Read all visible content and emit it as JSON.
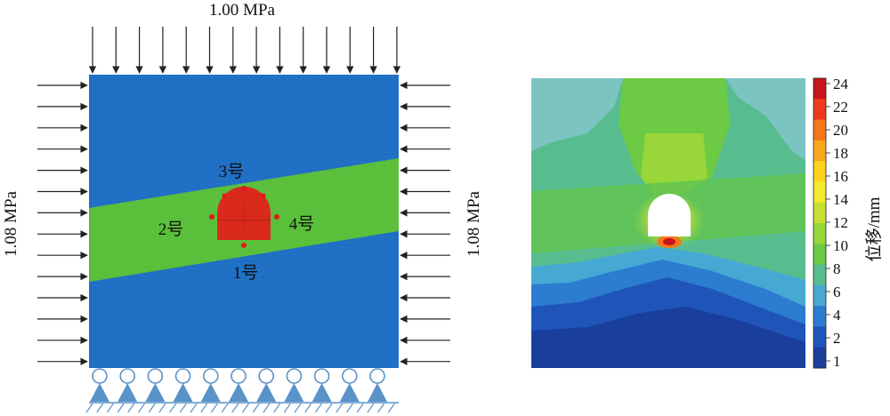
{
  "left_model": {
    "top_load": "1.00 MPa",
    "left_load": "1.08 MPa",
    "right_load": "1.08 MPa",
    "points": [
      "3号",
      "2号",
      "4号",
      "1号"
    ],
    "colors": {
      "rock": "#1f6fc4",
      "band": "#5abf3a",
      "tunnel": "#d92a1c",
      "support": "#5a93c8"
    }
  },
  "colorbar": {
    "label": "位移/mm",
    "ticks": [
      "24",
      "22",
      "20",
      "18",
      "16",
      "14",
      "12",
      "10",
      "8",
      "6",
      "4",
      "2",
      "1"
    ],
    "colors": [
      "#c8141a",
      "#ee3a1c",
      "#f6761c",
      "#f9a81c",
      "#fbd21c",
      "#f2ea2a",
      "#c8e034",
      "#98d63a",
      "#6cca44",
      "#58bd8e",
      "#46a9d4",
      "#2c7cd0",
      "#1f55b8",
      "#1a3e9c"
    ]
  }
}
